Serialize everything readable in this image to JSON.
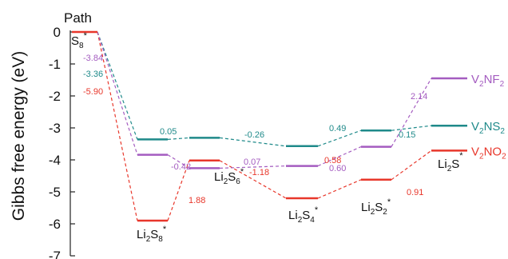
{
  "chart_data": {
    "type": "line",
    "title": "",
    "xlabel": "",
    "ylabel": "Gibbs free energy (eV)",
    "ylim": [
      -7,
      0
    ],
    "yticks": [
      0,
      -1,
      -2,
      -3,
      -4,
      -5,
      -6,
      -7
    ],
    "path_title": "Path",
    "states": [
      {
        "base": "S",
        "sub": "8",
        "sup": "*"
      },
      {
        "base": "Li",
        "sub": "2",
        "base2": "S",
        "sub2": "8",
        "sup": "*"
      },
      {
        "base": "Li",
        "sub": "2",
        "base2": "S",
        "sub2": "6",
        "sup": "*"
      },
      {
        "base": "Li",
        "sub": "2",
        "base2": "S",
        "sub2": "4",
        "sup": "*"
      },
      {
        "base": "Li",
        "sub": "2",
        "base2": "S",
        "sub2": "2",
        "sup": "*"
      },
      {
        "base": "Li",
        "sub": "2",
        "base2": "S",
        "sub2": "",
        "sup": "*"
      }
    ],
    "series": [
      {
        "name": "V2NO2",
        "label_base": "V",
        "label_sub1": "2",
        "label_mid": "NO",
        "label_sub2": "2",
        "color": "#e8372b",
        "values": [
          0,
          -5.9,
          -4.02,
          -5.2,
          -4.62,
          -3.71
        ],
        "deltas": [
          "-5.90",
          "1.88",
          "-1.18",
          "0.58",
          "0.91"
        ]
      },
      {
        "name": "V2NS2",
        "label_base": "V",
        "label_sub1": "2",
        "label_mid": "NS",
        "label_sub2": "2",
        "color": "#1f8a8a",
        "values": [
          0,
          -3.36,
          -3.31,
          -3.57,
          -3.08,
          -2.93
        ],
        "deltas": [
          "-3.36",
          "0.05",
          "-0.26",
          "0.49",
          "0.15"
        ]
      },
      {
        "name": "V2NF2",
        "label_base": "V",
        "label_sub1": "2",
        "label_mid": "NF",
        "label_sub2": "2",
        "color": "#a45cc0",
        "values": [
          0,
          -3.84,
          -4.26,
          -4.19,
          -3.59,
          -1.45
        ],
        "deltas": [
          "-3.84",
          "-0.42",
          "0.07",
          "0.60",
          "2.14"
        ]
      }
    ]
  }
}
